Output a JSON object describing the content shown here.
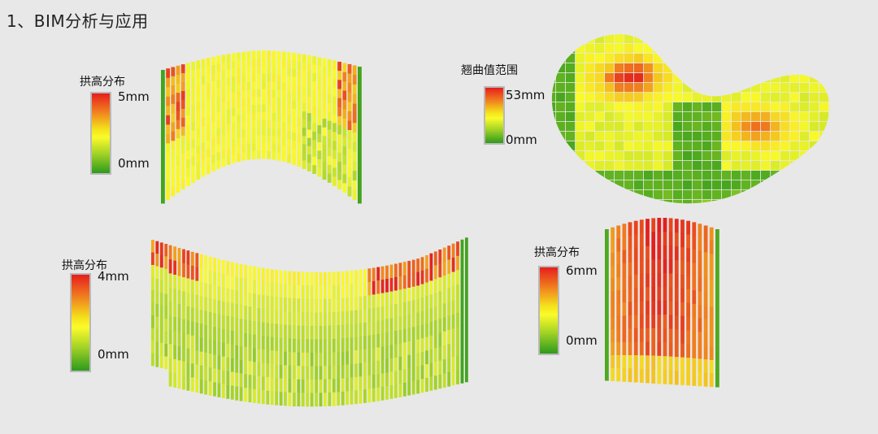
{
  "title": "1、BIM分析与应用",
  "panels": [
    {
      "legend_title": "拱高分布",
      "max_label": "5mm",
      "min_label": "0mm"
    },
    {
      "legend_title": "翘曲值范围",
      "max_label": "53mm",
      "min_label": "0mm"
    },
    {
      "legend_title": "拱高分布",
      "max_label": "4mm",
      "min_label": "0mm"
    },
    {
      "legend_title": "拱高分布",
      "max_label": "6mm",
      "min_label": "0mm"
    }
  ],
  "colors": {
    "high": "#e61e1e",
    "mid": "#fbfb2a",
    "low": "#2e9a1d",
    "background": "#e8e8e8"
  }
}
